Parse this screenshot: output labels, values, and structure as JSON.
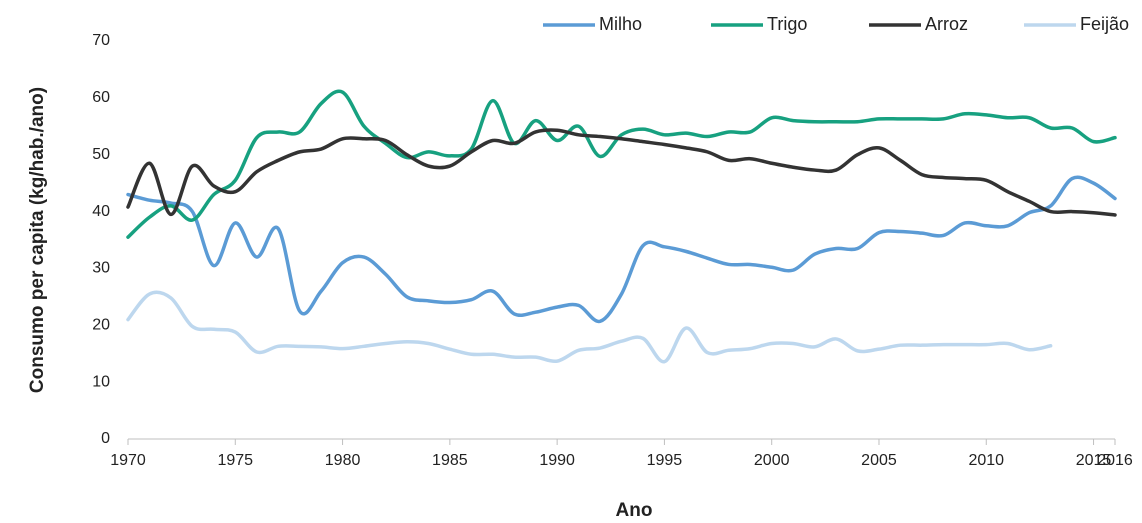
{
  "chart_data": {
    "type": "line",
    "x_label": "Ano",
    "y_label": "Consumo per capita (kg/hab./ano)",
    "x": [
      1970,
      1971,
      1972,
      1973,
      1974,
      1975,
      1976,
      1977,
      1978,
      1979,
      1980,
      1981,
      1982,
      1983,
      1984,
      1985,
      1986,
      1987,
      1988,
      1989,
      1990,
      1991,
      1992,
      1993,
      1994,
      1995,
      1996,
      1997,
      1998,
      1999,
      2000,
      2001,
      2002,
      2003,
      2004,
      2005,
      2006,
      2007,
      2008,
      2009,
      2010,
      2011,
      2012,
      2013,
      2014,
      2015,
      2016
    ],
    "series": [
      {
        "name": "Milho",
        "color": "#5b9bd5",
        "values": [
          43,
          42,
          41.5,
          40,
          30.5,
          38,
          32,
          37,
          22.5,
          26,
          31,
          32,
          29,
          25,
          24.3,
          24,
          24.5,
          26,
          22,
          22.3,
          23.2,
          23.5,
          20.7,
          25.5,
          34,
          33.8,
          33,
          31.8,
          30.7,
          30.7,
          30.2,
          29.7,
          32.5,
          33.5,
          33.5,
          36.3,
          36.5,
          36.2,
          35.8,
          38,
          37.5,
          37.5,
          39.8,
          41,
          45.8,
          45,
          42.3
        ]
      },
      {
        "name": "Trigo",
        "color": "#17a180",
        "values": [
          35.5,
          39,
          41,
          38.5,
          43,
          45.5,
          53,
          54,
          54,
          59,
          61,
          55,
          52,
          49.5,
          50.5,
          49.8,
          51,
          59.5,
          52,
          56,
          52.5,
          55,
          49.7,
          53.5,
          54.5,
          53.5,
          53.8,
          53.2,
          54,
          54,
          56.5,
          56,
          55.8,
          55.8,
          55.8,
          56.3,
          56.3,
          56.3,
          56.3,
          57.2,
          57,
          56.5,
          56.5,
          54.7,
          54.7,
          52.3,
          53
        ]
      },
      {
        "name": "Arroz",
        "color": "#333333",
        "values": [
          40.8,
          48.5,
          39.5,
          48,
          44.5,
          43.5,
          47,
          49,
          50.5,
          51,
          52.8,
          52.8,
          52.5,
          50,
          48,
          48,
          50.5,
          52.5,
          52,
          54,
          54.3,
          53.5,
          53.2,
          52.8,
          52.3,
          51.8,
          51.2,
          50.5,
          49,
          49.3,
          48.5,
          47.8,
          47.3,
          47.3,
          50,
          51.2,
          49,
          46.5,
          46,
          45.8,
          45.5,
          43.5,
          41.8,
          40,
          40,
          39.8,
          39.4
        ]
      },
      {
        "name": "Feijão",
        "color": "#bdd7ee",
        "values": [
          21,
          25.5,
          24.8,
          19.8,
          19.3,
          18.8,
          15.3,
          16.3,
          16.3,
          16.2,
          15.9,
          16.3,
          16.8,
          17.1,
          16.8,
          15.8,
          14.9,
          14.9,
          14.4,
          14.4,
          13.7,
          15.6,
          16,
          17.2,
          17.7,
          13.6,
          19.5,
          15.2,
          15.6,
          15.9,
          16.8,
          16.8,
          16.2,
          17.6,
          15.5,
          15.8,
          16.5,
          16.5,
          16.6,
          16.6,
          16.6,
          16.8,
          15.7,
          16.4,
          null,
          null,
          null
        ]
      }
    ],
    "xlim": [
      1970,
      2016
    ],
    "xticks": [
      1970,
      1975,
      1980,
      1985,
      1990,
      1995,
      2000,
      2005,
      2010,
      2015,
      2016
    ],
    "ylim": [
      0,
      70
    ],
    "yticks": [
      0,
      10,
      20,
      30,
      40,
      50,
      60,
      70
    ],
    "legend": "top-right"
  }
}
